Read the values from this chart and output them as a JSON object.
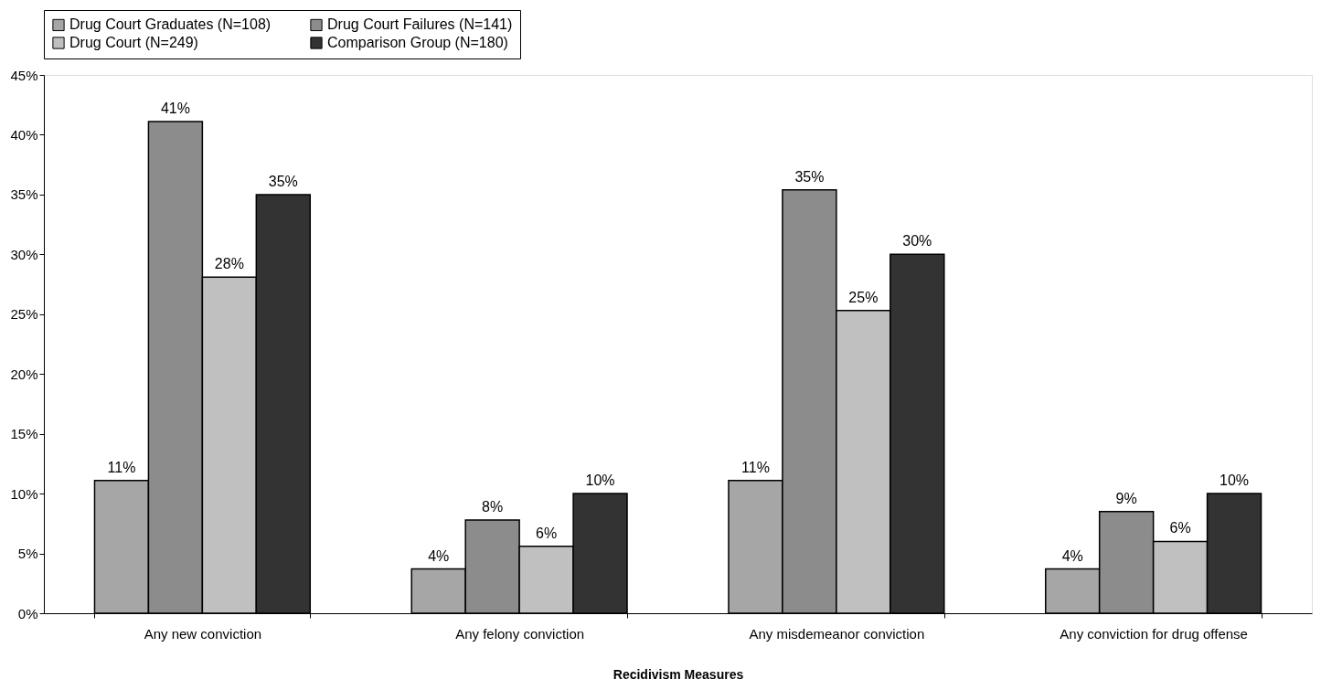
{
  "chart_data": {
    "type": "bar",
    "xlabel": "Recidivism Measures",
    "categories": [
      "Any new conviction",
      "Any felony conviction",
      "Any misdemeanor conviction",
      "Any conviction for drug offense"
    ],
    "series": [
      {
        "name": "Drug Court Graduates (N=108)",
        "color": "#a6a6a6",
        "values": [
          11.1,
          3.7,
          11.1,
          3.7
        ],
        "value_labels": [
          "11%",
          "4%",
          "11%",
          "4%"
        ]
      },
      {
        "name": "Drug Court Failures (N=141)",
        "color": "#8c8c8c",
        "values": [
          41.1,
          7.8,
          35.4,
          8.5
        ],
        "value_labels": [
          "41%",
          "8%",
          "35%",
          "9%"
        ]
      },
      {
        "name": "Drug Court (N=249)",
        "color": "#c0c0c0",
        "values": [
          28.1,
          5.6,
          25.3,
          6.0
        ],
        "value_labels": [
          "28%",
          "6%",
          "25%",
          "6%"
        ]
      },
      {
        "name": "Comparison Group (N=180)",
        "color": "#333333",
        "values": [
          35,
          10,
          30,
          10
        ],
        "value_labels": [
          "35%",
          "10%",
          "30%",
          "10%"
        ]
      }
    ],
    "ylim": [
      0,
      45
    ],
    "yticks": [
      {
        "value": 0,
        "label": "0%"
      },
      {
        "value": 5,
        "label": "5%"
      },
      {
        "value": 10,
        "label": "10%"
      },
      {
        "value": 15,
        "label": "15%"
      },
      {
        "value": 20,
        "label": "20%"
      },
      {
        "value": 25,
        "label": "25%"
      },
      {
        "value": 30,
        "label": "30%"
      },
      {
        "value": 35,
        "label": "35%"
      },
      {
        "value": 40,
        "label": "40%"
      },
      {
        "value": 45,
        "label": "45%"
      }
    ],
    "grid": false,
    "legend": "top"
  }
}
